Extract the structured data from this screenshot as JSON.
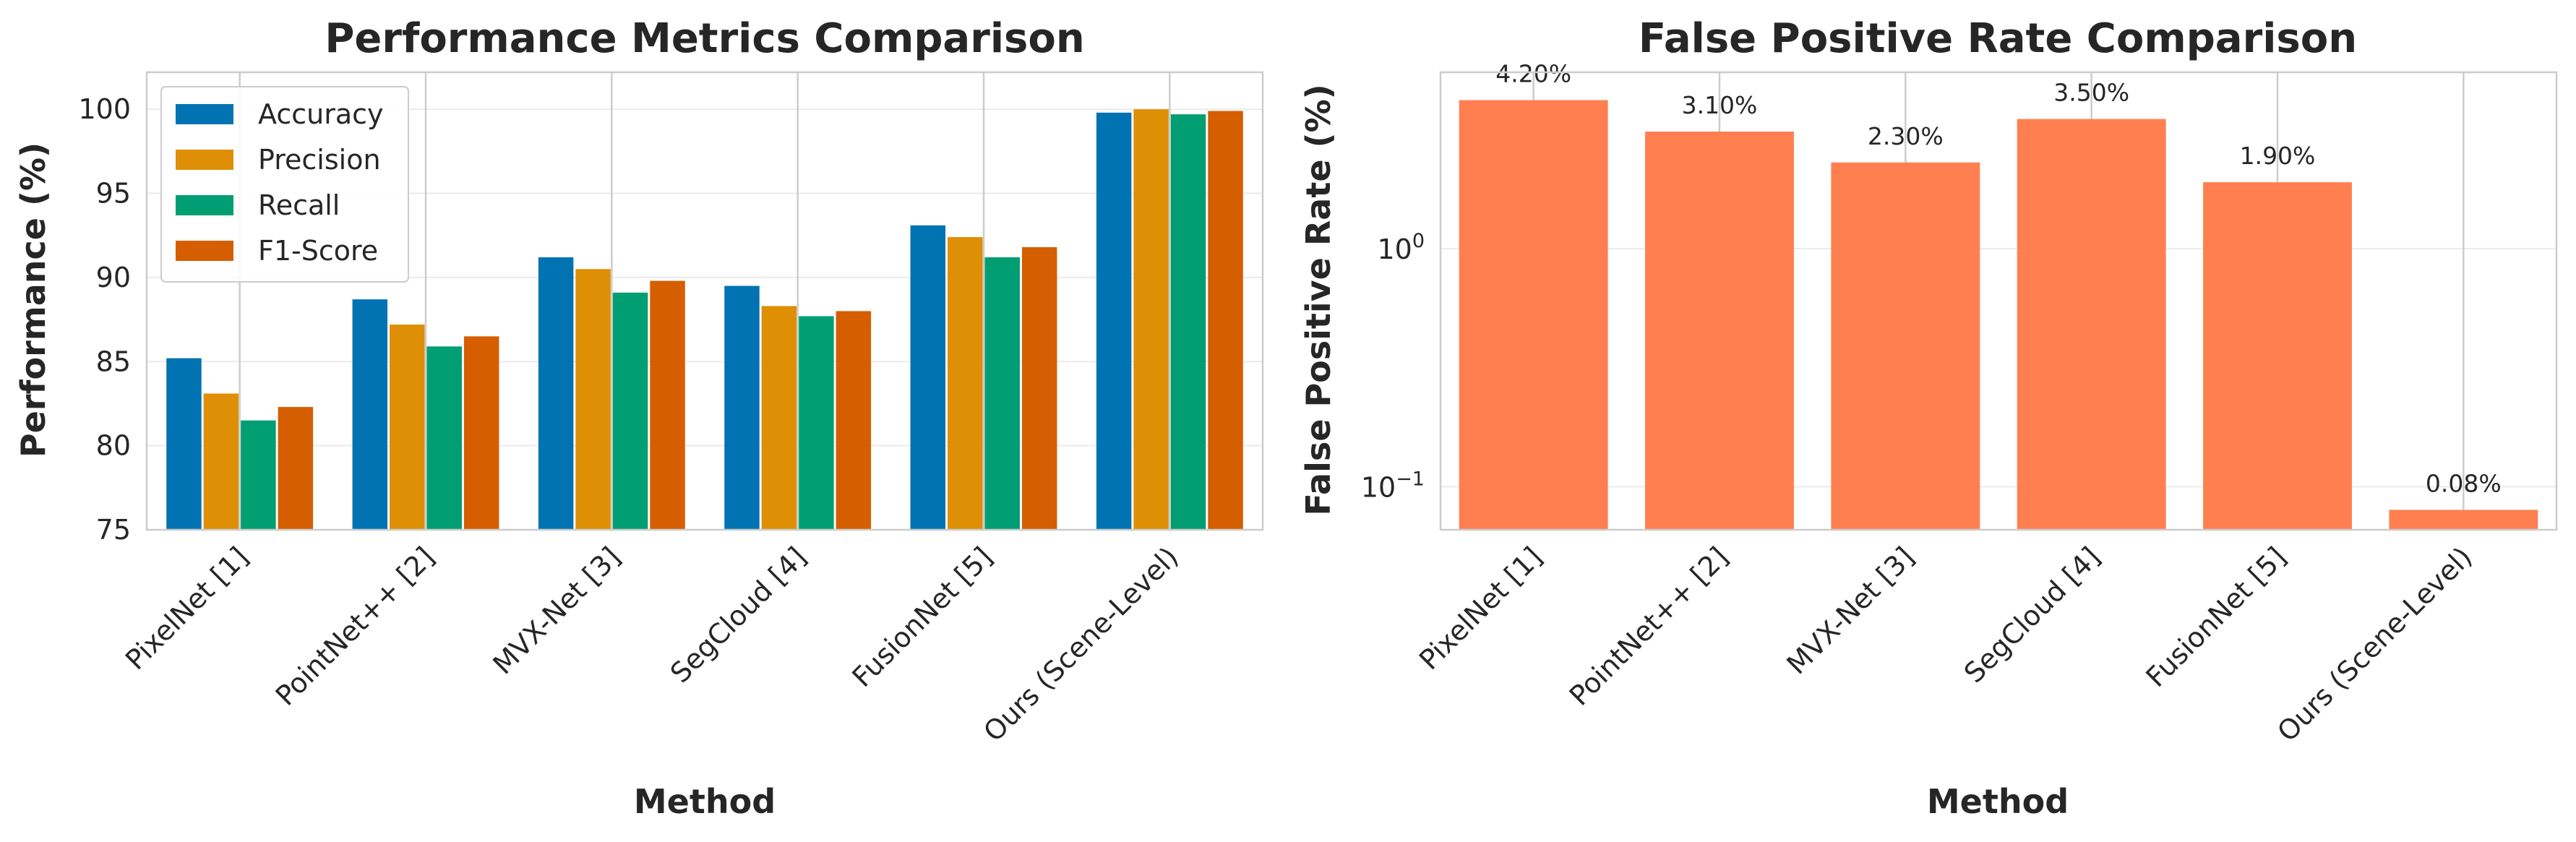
{
  "chart_data": [
    {
      "type": "bar",
      "title": "Performance Metrics Comparison",
      "xlabel": "Method",
      "ylabel": "Performance (%)",
      "ylim": [
        75,
        102.2
      ],
      "yticks": [
        75,
        80,
        85,
        90,
        95,
        100
      ],
      "grid": true,
      "legend_position": "top-left",
      "categories": [
        "PixelNet [1]",
        "PointNet++ [2]",
        "MVX-Net [3]",
        "SegCloud [4]",
        "FusionNet [5]",
        "Ours (Scene-Level)"
      ],
      "series": [
        {
          "name": "Accuracy",
          "color": "#0173b2",
          "values": [
            85.2,
            88.7,
            91.2,
            89.5,
            93.1,
            99.8
          ]
        },
        {
          "name": "Precision",
          "color": "#de8f05",
          "values": [
            83.1,
            87.2,
            90.5,
            88.3,
            92.4,
            100.0
          ]
        },
        {
          "name": "Recall",
          "color": "#029e73",
          "values": [
            81.5,
            85.9,
            89.1,
            87.7,
            91.2,
            99.7
          ]
        },
        {
          "name": "F1-Score",
          "color": "#d55e00",
          "values": [
            82.3,
            86.5,
            89.8,
            88.0,
            91.8,
            99.9
          ]
        }
      ]
    },
    {
      "type": "bar",
      "title": "False Positive Rate Comparison",
      "xlabel": "Method",
      "ylabel": "False Positive Rate (%)",
      "yscale": "log",
      "ylim": [
        0.066,
        5.5
      ],
      "yticks": [
        {
          "value": 1,
          "base": "10",
          "exp": "0"
        },
        {
          "value": 0.1,
          "base": "10",
          "exp": "−1"
        }
      ],
      "grid": true,
      "bar_color": "#ff7f50",
      "categories": [
        "PixelNet [1]",
        "PointNet++ [2]",
        "MVX-Net [3]",
        "SegCloud [4]",
        "FusionNet [5]",
        "Ours (Scene-Level)"
      ],
      "values": [
        4.2,
        3.1,
        2.3,
        3.5,
        1.9,
        0.08
      ],
      "data_labels": [
        "4.20%",
        "3.10%",
        "2.30%",
        "3.50%",
        "1.90%",
        "0.08%"
      ]
    }
  ]
}
